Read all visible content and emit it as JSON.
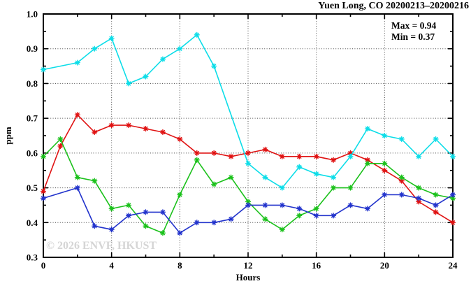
{
  "title": "Yuen Long, CO 20200213–20200216",
  "stats": {
    "max_label": "Max = 0.94",
    "min_label": "Min = 0.37"
  },
  "watermark": "© 2026 ENVF, HKUST",
  "chart_data": {
    "type": "line",
    "title": "Yuen Long, CO 20200213–20200216",
    "xlabel": "Hours",
    "ylabel": "ppm",
    "xlim": [
      0,
      24
    ],
    "ylim": [
      0.3,
      1.0
    ],
    "grid": true,
    "legend_position": "none",
    "marker": "asterisk",
    "annotations": [
      "Max = 0.94",
      "Min = 0.37"
    ],
    "x_major_ticks": [
      0,
      4,
      8,
      12,
      16,
      20,
      24
    ],
    "x_tick_labels": [
      "0",
      "4",
      "8",
      "12",
      "16",
      "20",
      "24"
    ],
    "x_minor_ticks": [
      2,
      6,
      10,
      14,
      18,
      22
    ],
    "y_major_ticks": [
      0.3,
      0.4,
      0.5,
      0.6,
      0.7,
      0.8,
      0.9,
      1.0
    ],
    "y_tick_labels": [
      "0.3",
      "0.4",
      "0.5",
      "0.6",
      "0.7",
      "0.8",
      "0.9",
      "1.0"
    ],
    "y_minor_ticks": [
      0.35,
      0.45,
      0.55,
      0.65,
      0.75,
      0.85,
      0.95
    ],
    "x": [
      0,
      1,
      2,
      3,
      4,
      5,
      6,
      7,
      8,
      9,
      10,
      11,
      12,
      13,
      14,
      15,
      16,
      17,
      18,
      19,
      20,
      21,
      22,
      23,
      24
    ],
    "series": [
      {
        "name": "red",
        "color": "#e01212",
        "values": [
          0.49,
          0.62,
          0.71,
          0.66,
          0.68,
          0.68,
          0.67,
          0.66,
          0.64,
          0.6,
          0.6,
          0.59,
          0.6,
          0.61,
          0.59,
          0.59,
          0.59,
          0.58,
          0.6,
          0.58,
          0.55,
          0.52,
          0.46,
          0.43,
          0.4
        ]
      },
      {
        "name": "green",
        "color": "#1bc11b",
        "values": [
          0.59,
          0.64,
          0.53,
          0.52,
          0.44,
          0.45,
          0.39,
          0.37,
          0.48,
          0.58,
          0.51,
          0.53,
          0.46,
          0.41,
          0.38,
          0.42,
          0.44,
          0.5,
          0.5,
          0.57,
          0.57,
          0.53,
          0.5,
          0.48,
          0.47
        ]
      },
      {
        "name": "blue",
        "color": "#2233cc",
        "values": [
          0.47,
          null,
          0.5,
          0.39,
          0.38,
          0.42,
          0.43,
          0.43,
          0.37,
          0.4,
          0.4,
          0.41,
          0.45,
          0.45,
          0.45,
          0.44,
          0.42,
          0.42,
          0.45,
          0.44,
          0.48,
          0.48,
          0.47,
          0.45,
          0.48
        ]
      },
      {
        "name": "cyan",
        "color": "#0cdde8",
        "values": [
          0.84,
          null,
          0.86,
          0.9,
          0.93,
          0.8,
          0.82,
          0.87,
          0.9,
          0.94,
          0.85,
          null,
          0.57,
          0.53,
          0.5,
          0.56,
          0.54,
          0.53,
          0.59,
          0.67,
          0.65,
          0.64,
          0.59,
          0.64,
          0.59
        ]
      }
    ]
  }
}
